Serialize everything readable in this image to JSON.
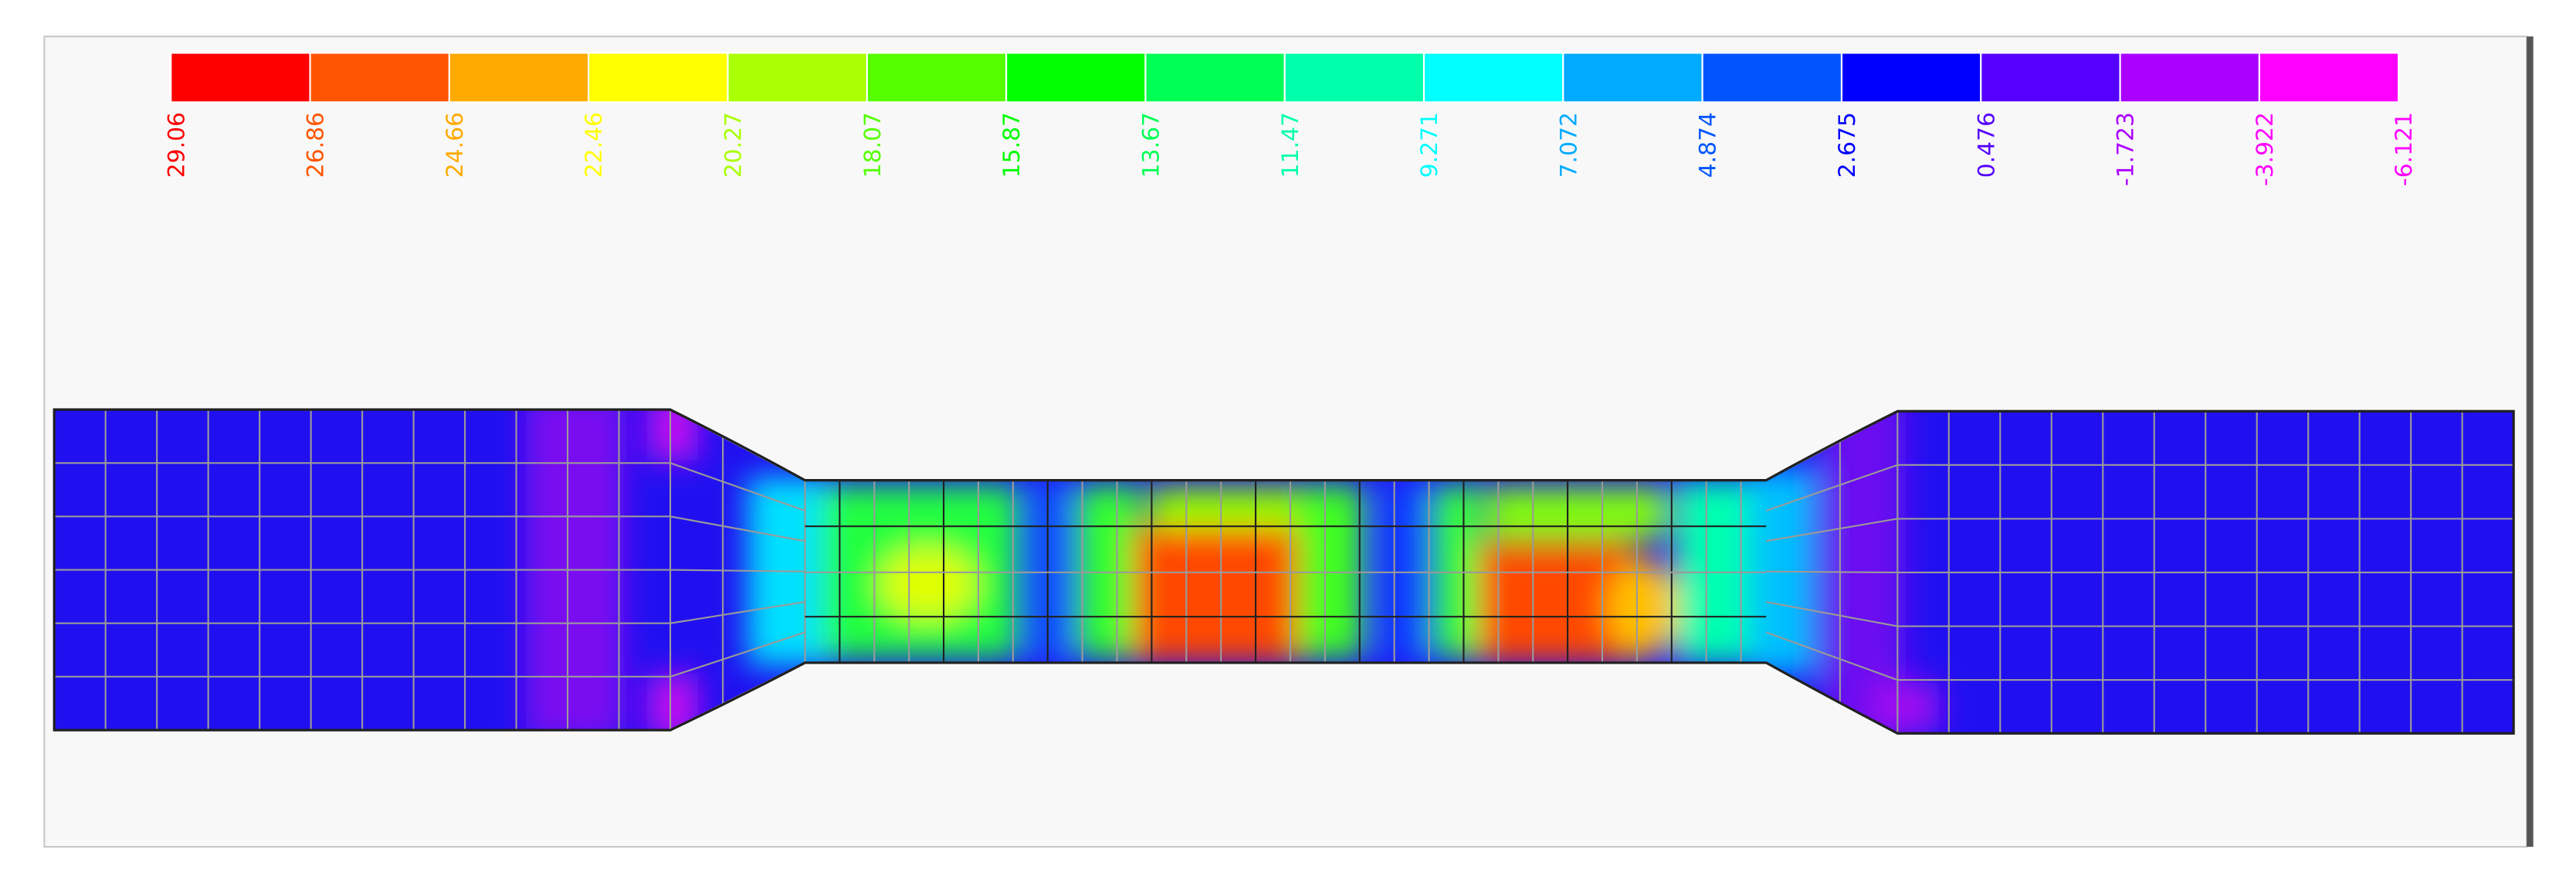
{
  "legend": {
    "colors": [
      "#ff0000",
      "#ff5500",
      "#ffaa00",
      "#ffff00",
      "#aaff00",
      "#55ff00",
      "#00ff00",
      "#00ff55",
      "#00ffaa",
      "#00ffff",
      "#00aaff",
      "#0055ff",
      "#0000ff",
      "#5500ff",
      "#aa00ff",
      "#ff00ff"
    ],
    "labels": [
      "29.06",
      "26.86",
      "24.66",
      "22.46",
      "20.27",
      "18.07",
      "15.87",
      "13.67",
      "11.47",
      "9.271",
      "7.072",
      "4.874",
      "2.675",
      "0.476",
      "-1.723",
      "-3.922",
      "-6.121"
    ]
  }
}
